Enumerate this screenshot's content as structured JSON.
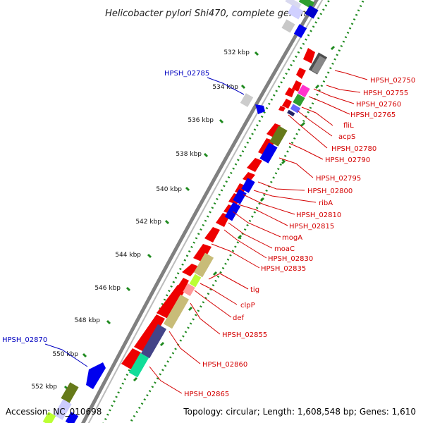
{
  "title": "Helicobacter pylori Shi470, complete genome",
  "footer": {
    "accession": "Accession: NC_010698",
    "topology": "Topology: circular; Length: 1,608,548 bp; Genes: 1,610"
  },
  "colors": {
    "backbone": "#7a7a7a",
    "tick_dots": "#1f8a1f",
    "label_red": "#d40000",
    "label_blue": "#0000c0"
  },
  "kbp_labels": [
    "532 kbp",
    "534 kbp",
    "536 kbp",
    "538 kbp",
    "540 kbp",
    "542 kbp",
    "544 kbp",
    "546 kbp",
    "548 kbp",
    "550 kbp",
    "552 kbp"
  ],
  "labels_blue": [
    "HPSH_02785",
    "HPSH_02870"
  ],
  "labels_red": [
    "HPSH_02750",
    "HPSH_02755",
    "HPSH_02760",
    "HPSH_02765",
    "fliL",
    "acpS",
    "HPSH_02780",
    "HPSH_02790",
    "HPSH_02795",
    "HPSH_02800",
    "ribA",
    "HPSH_02810",
    "HPSH_02815",
    "mogA",
    "moaC",
    "HPSH_02830",
    "HPSH_02835",
    "tig",
    "clpP",
    "def",
    "HPSH_02855",
    "HPSH_02860",
    "HPSH_02865"
  ]
}
